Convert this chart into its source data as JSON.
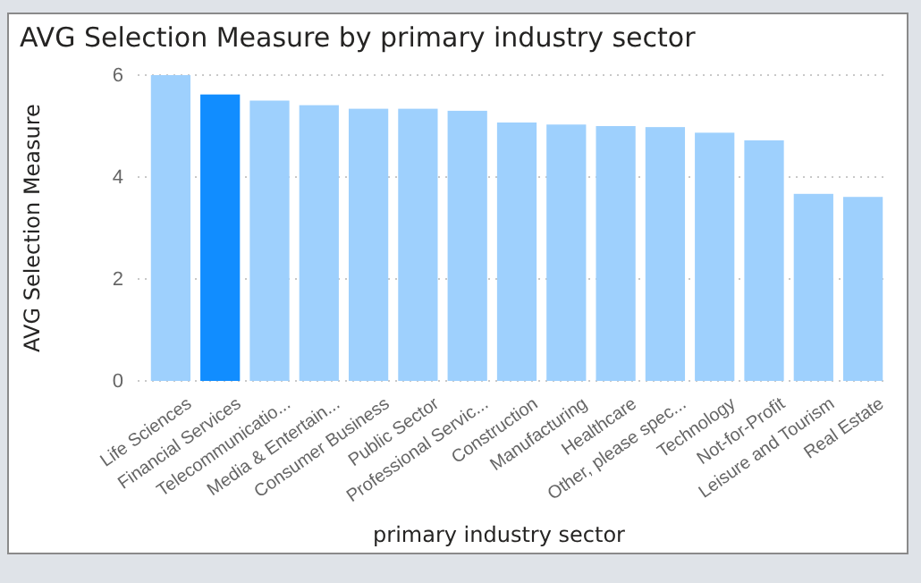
{
  "chart_data": {
    "type": "bar",
    "title": "AVG Selection Measure by primary industry sector",
    "xlabel": "primary industry sector",
    "ylabel": "AVG Selection Measure",
    "categories": [
      "Life Sciences",
      "Financial Services",
      "Telecommunicatio...",
      "Media & Entertain...",
      "Consumer Business",
      "Public Sector",
      "Professional Servic...",
      "Construction",
      "Manufacturing",
      "Healthcare",
      "Other, please spec...",
      "Technology",
      "Not-for-Profit",
      "Leisure and Tourism",
      "Real Estate"
    ],
    "values": [
      6.0,
      5.62,
      5.5,
      5.41,
      5.34,
      5.34,
      5.3,
      5.07,
      5.03,
      5.0,
      4.98,
      4.87,
      4.72,
      3.67,
      3.61
    ],
    "colors": [
      "#9ed0fd",
      "#118dff",
      "#9ed0fd",
      "#9ed0fd",
      "#9ed0fd",
      "#9ed0fd",
      "#9ed0fd",
      "#9ed0fd",
      "#9ed0fd",
      "#9ed0fd",
      "#9ed0fd",
      "#9ed0fd",
      "#9ed0fd",
      "#9ed0fd",
      "#9ed0fd"
    ],
    "ylim": [
      0,
      6
    ],
    "yticks": [
      0,
      2,
      4,
      6
    ],
    "grid": "y"
  }
}
